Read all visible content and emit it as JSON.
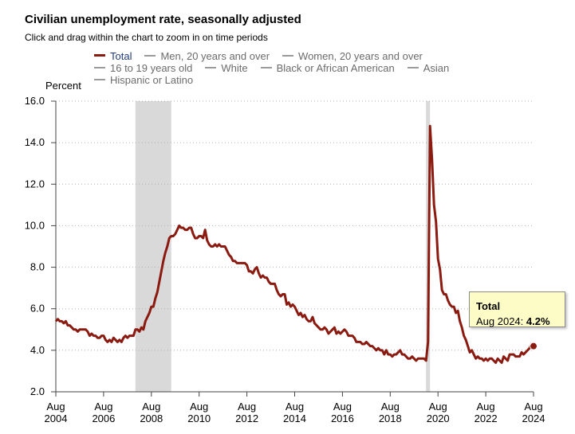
{
  "title": "Civilian unemployment rate, seasonally adjusted",
  "subtitle": "Click and drag within the chart to zoom in on time periods",
  "legend": [
    {
      "label": "Total",
      "color": "#8b1a10",
      "active": true
    },
    {
      "label": "Men, 20 years and over",
      "color": "#9a9a9a",
      "active": false
    },
    {
      "label": "Women, 20 years and over",
      "color": "#9a9a9a",
      "active": false
    },
    {
      "label": "16 to 19 years old",
      "color": "#9a9a9a",
      "active": false
    },
    {
      "label": "White",
      "color": "#9a9a9a",
      "active": false
    },
    {
      "label": "Black or African American",
      "color": "#9a9a9a",
      "active": false
    },
    {
      "label": "Asian",
      "color": "#9a9a9a",
      "active": false
    },
    {
      "label": "Hispanic or Latino",
      "color": "#9a9a9a",
      "active": false
    }
  ],
  "tooltip": {
    "series": "Total",
    "label": "Aug 2024:",
    "value": "4.2%"
  },
  "chart_data": {
    "type": "line",
    "ylabel": "Percent",
    "ylim": [
      2.0,
      16.0
    ],
    "yticks": [
      "2.0",
      "4.0",
      "6.0",
      "8.0",
      "10.0",
      "12.0",
      "14.0",
      "16.0"
    ],
    "xlim": [
      "2004-08",
      "2024-08"
    ],
    "xticks": [
      {
        "date": "2004-08",
        "month": "Aug",
        "year": "2004"
      },
      {
        "date": "2006-08",
        "month": "Aug",
        "year": "2006"
      },
      {
        "date": "2008-08",
        "month": "Aug",
        "year": "2008"
      },
      {
        "date": "2010-08",
        "month": "Aug",
        "year": "2010"
      },
      {
        "date": "2012-08",
        "month": "Aug",
        "year": "2012"
      },
      {
        "date": "2014-08",
        "month": "Aug",
        "year": "2014"
      },
      {
        "date": "2016-08",
        "month": "Aug",
        "year": "2016"
      },
      {
        "date": "2018-08",
        "month": "Aug",
        "year": "2018"
      },
      {
        "date": "2020-08",
        "month": "Aug",
        "year": "2020"
      },
      {
        "date": "2022-08",
        "month": "Aug",
        "year": "2022"
      },
      {
        "date": "2024-08",
        "month": "Aug",
        "year": "2024"
      }
    ],
    "grid": "horizontal dotted",
    "recessions": [
      {
        "start": "2007-12",
        "end": "2009-06"
      },
      {
        "start": "2020-02",
        "end": "2020-04"
      }
    ],
    "highlight": {
      "date": "2024-08",
      "value": 4.2
    },
    "series": [
      {
        "name": "Total",
        "color": "#8b1a10",
        "points": [
          [
            "2004-08",
            5.4
          ],
          [
            "2004-09",
            5.5
          ],
          [
            "2004-10",
            5.4
          ],
          [
            "2004-11",
            5.4
          ],
          [
            "2004-12",
            5.3
          ],
          [
            "2005-01",
            5.4
          ],
          [
            "2005-02",
            5.2
          ],
          [
            "2005-03",
            5.2
          ],
          [
            "2005-04",
            5.1
          ],
          [
            "2005-05",
            5.0
          ],
          [
            "2005-06",
            5.0
          ],
          [
            "2005-07",
            4.9
          ],
          [
            "2005-08",
            5.0
          ],
          [
            "2005-09",
            5.0
          ],
          [
            "2005-10",
            5.0
          ],
          [
            "2005-11",
            5.0
          ],
          [
            "2005-12",
            4.9
          ],
          [
            "2006-01",
            4.7
          ],
          [
            "2006-02",
            4.8
          ],
          [
            "2006-03",
            4.7
          ],
          [
            "2006-04",
            4.7
          ],
          [
            "2006-05",
            4.6
          ],
          [
            "2006-06",
            4.6
          ],
          [
            "2006-07",
            4.7
          ],
          [
            "2006-08",
            4.7
          ],
          [
            "2006-09",
            4.5
          ],
          [
            "2006-10",
            4.4
          ],
          [
            "2006-11",
            4.5
          ],
          [
            "2006-12",
            4.4
          ],
          [
            "2007-01",
            4.6
          ],
          [
            "2007-02",
            4.5
          ],
          [
            "2007-03",
            4.4
          ],
          [
            "2007-04",
            4.5
          ],
          [
            "2007-05",
            4.4
          ],
          [
            "2007-06",
            4.6
          ],
          [
            "2007-07",
            4.7
          ],
          [
            "2007-08",
            4.6
          ],
          [
            "2007-09",
            4.7
          ],
          [
            "2007-10",
            4.7
          ],
          [
            "2007-11",
            4.7
          ],
          [
            "2007-12",
            5.0
          ],
          [
            "2008-01",
            5.0
          ],
          [
            "2008-02",
            4.9
          ],
          [
            "2008-03",
            5.1
          ],
          [
            "2008-04",
            5.0
          ],
          [
            "2008-05",
            5.4
          ],
          [
            "2008-06",
            5.6
          ],
          [
            "2008-07",
            5.8
          ],
          [
            "2008-08",
            6.1
          ],
          [
            "2008-09",
            6.1
          ],
          [
            "2008-10",
            6.5
          ],
          [
            "2008-11",
            6.8
          ],
          [
            "2008-12",
            7.3
          ],
          [
            "2009-01",
            7.8
          ],
          [
            "2009-02",
            8.3
          ],
          [
            "2009-03",
            8.7
          ],
          [
            "2009-04",
            9.0
          ],
          [
            "2009-05",
            9.4
          ],
          [
            "2009-06",
            9.5
          ],
          [
            "2009-07",
            9.5
          ],
          [
            "2009-08",
            9.6
          ],
          [
            "2009-09",
            9.8
          ],
          [
            "2009-10",
            10.0
          ],
          [
            "2009-11",
            9.9
          ],
          [
            "2009-12",
            9.9
          ],
          [
            "2010-01",
            9.8
          ],
          [
            "2010-02",
            9.8
          ],
          [
            "2010-03",
            9.9
          ],
          [
            "2010-04",
            9.9
          ],
          [
            "2010-05",
            9.6
          ],
          [
            "2010-06",
            9.4
          ],
          [
            "2010-07",
            9.4
          ],
          [
            "2010-08",
            9.5
          ],
          [
            "2010-09",
            9.5
          ],
          [
            "2010-10",
            9.4
          ],
          [
            "2010-11",
            9.8
          ],
          [
            "2010-12",
            9.3
          ],
          [
            "2011-01",
            9.1
          ],
          [
            "2011-02",
            9.0
          ],
          [
            "2011-03",
            9.0
          ],
          [
            "2011-04",
            9.1
          ],
          [
            "2011-05",
            9.0
          ],
          [
            "2011-06",
            9.1
          ],
          [
            "2011-07",
            9.0
          ],
          [
            "2011-08",
            9.0
          ],
          [
            "2011-09",
            9.0
          ],
          [
            "2011-10",
            8.8
          ],
          [
            "2011-11",
            8.6
          ],
          [
            "2011-12",
            8.5
          ],
          [
            "2012-01",
            8.3
          ],
          [
            "2012-02",
            8.3
          ],
          [
            "2012-03",
            8.2
          ],
          [
            "2012-04",
            8.2
          ],
          [
            "2012-05",
            8.2
          ],
          [
            "2012-06",
            8.2
          ],
          [
            "2012-07",
            8.2
          ],
          [
            "2012-08",
            8.1
          ],
          [
            "2012-09",
            7.8
          ],
          [
            "2012-10",
            7.8
          ],
          [
            "2012-11",
            7.7
          ],
          [
            "2012-12",
            7.9
          ],
          [
            "2013-01",
            8.0
          ],
          [
            "2013-02",
            7.7
          ],
          [
            "2013-03",
            7.5
          ],
          [
            "2013-04",
            7.6
          ],
          [
            "2013-05",
            7.5
          ],
          [
            "2013-06",
            7.5
          ],
          [
            "2013-07",
            7.3
          ],
          [
            "2013-08",
            7.2
          ],
          [
            "2013-09",
            7.2
          ],
          [
            "2013-10",
            7.2
          ],
          [
            "2013-11",
            6.9
          ],
          [
            "2013-12",
            6.7
          ],
          [
            "2014-01",
            6.6
          ],
          [
            "2014-02",
            6.7
          ],
          [
            "2014-03",
            6.7
          ],
          [
            "2014-04",
            6.2
          ],
          [
            "2014-05",
            6.3
          ],
          [
            "2014-06",
            6.1
          ],
          [
            "2014-07",
            6.2
          ],
          [
            "2014-08",
            6.1
          ],
          [
            "2014-09",
            5.9
          ],
          [
            "2014-10",
            5.7
          ],
          [
            "2014-11",
            5.8
          ],
          [
            "2014-12",
            5.6
          ],
          [
            "2015-01",
            5.7
          ],
          [
            "2015-02",
            5.5
          ],
          [
            "2015-03",
            5.4
          ],
          [
            "2015-04",
            5.4
          ],
          [
            "2015-05",
            5.6
          ],
          [
            "2015-06",
            5.3
          ],
          [
            "2015-07",
            5.2
          ],
          [
            "2015-08",
            5.1
          ],
          [
            "2015-09",
            5.0
          ],
          [
            "2015-10",
            5.0
          ],
          [
            "2015-11",
            5.1
          ],
          [
            "2015-12",
            5.0
          ],
          [
            "2016-01",
            4.8
          ],
          [
            "2016-02",
            4.9
          ],
          [
            "2016-03",
            5.0
          ],
          [
            "2016-04",
            5.1
          ],
          [
            "2016-05",
            4.8
          ],
          [
            "2016-06",
            4.9
          ],
          [
            "2016-07",
            4.8
          ],
          [
            "2016-08",
            4.9
          ],
          [
            "2016-09",
            5.0
          ],
          [
            "2016-10",
            4.9
          ],
          [
            "2016-11",
            4.7
          ],
          [
            "2016-12",
            4.7
          ],
          [
            "2017-01",
            4.7
          ],
          [
            "2017-02",
            4.6
          ],
          [
            "2017-03",
            4.4
          ],
          [
            "2017-04",
            4.4
          ],
          [
            "2017-05",
            4.4
          ],
          [
            "2017-06",
            4.3
          ],
          [
            "2017-07",
            4.3
          ],
          [
            "2017-08",
            4.4
          ],
          [
            "2017-09",
            4.3
          ],
          [
            "2017-10",
            4.2
          ],
          [
            "2017-11",
            4.2
          ],
          [
            "2017-12",
            4.1
          ],
          [
            "2018-01",
            4.0
          ],
          [
            "2018-02",
            4.1
          ],
          [
            "2018-03",
            4.0
          ],
          [
            "2018-04",
            4.0
          ],
          [
            "2018-05",
            3.8
          ],
          [
            "2018-06",
            4.0
          ],
          [
            "2018-07",
            3.8
          ],
          [
            "2018-08",
            3.8
          ],
          [
            "2018-09",
            3.7
          ],
          [
            "2018-10",
            3.8
          ],
          [
            "2018-11",
            3.8
          ],
          [
            "2018-12",
            3.9
          ],
          [
            "2019-01",
            4.0
          ],
          [
            "2019-02",
            3.8
          ],
          [
            "2019-03",
            3.8
          ],
          [
            "2019-04",
            3.7
          ],
          [
            "2019-05",
            3.6
          ],
          [
            "2019-06",
            3.6
          ],
          [
            "2019-07",
            3.7
          ],
          [
            "2019-08",
            3.6
          ],
          [
            "2019-09",
            3.5
          ],
          [
            "2019-10",
            3.6
          ],
          [
            "2019-11",
            3.6
          ],
          [
            "2019-12",
            3.6
          ],
          [
            "2020-01",
            3.6
          ],
          [
            "2020-02",
            3.5
          ],
          [
            "2020-03",
            4.4
          ],
          [
            "2020-04",
            14.8
          ],
          [
            "2020-05",
            13.2
          ],
          [
            "2020-06",
            11.0
          ],
          [
            "2020-07",
            10.2
          ],
          [
            "2020-08",
            8.4
          ],
          [
            "2020-09",
            7.9
          ],
          [
            "2020-10",
            6.9
          ],
          [
            "2020-11",
            6.7
          ],
          [
            "2020-12",
            6.7
          ],
          [
            "2021-01",
            6.4
          ],
          [
            "2021-02",
            6.2
          ],
          [
            "2021-03",
            6.1
          ],
          [
            "2021-04",
            6.1
          ],
          [
            "2021-05",
            5.8
          ],
          [
            "2021-06",
            5.9
          ],
          [
            "2021-07",
            5.4
          ],
          [
            "2021-08",
            5.1
          ],
          [
            "2021-09",
            4.7
          ],
          [
            "2021-10",
            4.5
          ],
          [
            "2021-11",
            4.2
          ],
          [
            "2021-12",
            3.9
          ],
          [
            "2022-01",
            4.0
          ],
          [
            "2022-02",
            3.8
          ],
          [
            "2022-03",
            3.6
          ],
          [
            "2022-04",
            3.7
          ],
          [
            "2022-05",
            3.6
          ],
          [
            "2022-06",
            3.6
          ],
          [
            "2022-07",
            3.5
          ],
          [
            "2022-08",
            3.6
          ],
          [
            "2022-09",
            3.5
          ],
          [
            "2022-10",
            3.6
          ],
          [
            "2022-11",
            3.6
          ],
          [
            "2022-12",
            3.5
          ],
          [
            "2023-01",
            3.4
          ],
          [
            "2023-02",
            3.6
          ],
          [
            "2023-03",
            3.5
          ],
          [
            "2023-04",
            3.4
          ],
          [
            "2023-05",
            3.7
          ],
          [
            "2023-06",
            3.6
          ],
          [
            "2023-07",
            3.5
          ],
          [
            "2023-08",
            3.8
          ],
          [
            "2023-09",
            3.8
          ],
          [
            "2023-10",
            3.8
          ],
          [
            "2023-11",
            3.7
          ],
          [
            "2023-12",
            3.7
          ],
          [
            "2024-01",
            3.7
          ],
          [
            "2024-02",
            3.9
          ],
          [
            "2024-03",
            3.8
          ],
          [
            "2024-04",
            3.9
          ],
          [
            "2024-05",
            4.0
          ],
          [
            "2024-06",
            4.1
          ],
          [
            "2024-07",
            4.3
          ],
          [
            "2024-08",
            4.2
          ]
        ]
      }
    ]
  }
}
